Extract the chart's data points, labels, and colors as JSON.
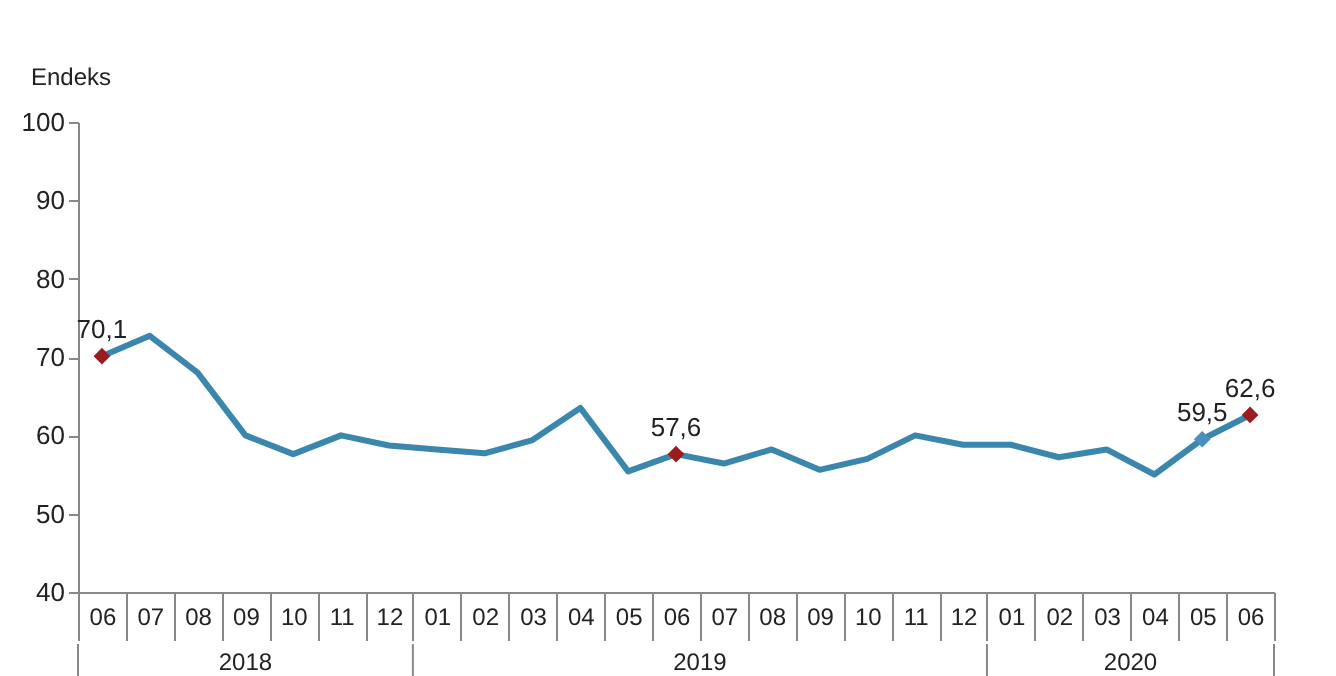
{
  "chart_data": {
    "type": "line",
    "ylabel": "Endeks",
    "categories": [
      "06",
      "07",
      "08",
      "09",
      "10",
      "11",
      "12",
      "01",
      "02",
      "03",
      "04",
      "05",
      "06",
      "07",
      "08",
      "09",
      "10",
      "11",
      "12",
      "01",
      "02",
      "03",
      "04",
      "05",
      "06"
    ],
    "annotations": [
      "2018",
      "2019",
      "2020"
    ],
    "ylim": [
      40,
      100
    ],
    "yticks": [
      40,
      50,
      60,
      70,
      80,
      90,
      100
    ],
    "grid": false,
    "series": [
      {
        "color": "#3a86ad",
        "marker": "none",
        "values": [
          70.1,
          72.7,
          68,
          60,
          57.6,
          60,
          58.7,
          58.2,
          57.7,
          59.4,
          63.5,
          55.4,
          57.6,
          56.4,
          58.2,
          55.6,
          57,
          60,
          58.8,
          58.8,
          57.2,
          58.2,
          55,
          59.5,
          62.6
        ]
      },
      {
        "type": "scatter",
        "marker": "diamond",
        "values": [
          70.1,
          null,
          null,
          null,
          null,
          null,
          null,
          null,
          null,
          null,
          null,
          null,
          57.6,
          null,
          null,
          null,
          null,
          null,
          null,
          null,
          null,
          null,
          null,
          59.5,
          62.6
        ],
        "colors": [
          "#9b1c1f",
          null,
          null,
          null,
          null,
          null,
          null,
          null,
          null,
          null,
          null,
          null,
          "#9b1c1f",
          null,
          null,
          null,
          null,
          null,
          null,
          null,
          null,
          null,
          null,
          "#4a8fc2",
          "#9b1c1f"
        ],
        "value_labels": [
          "70,1",
          null,
          null,
          null,
          null,
          null,
          null,
          null,
          null,
          null,
          null,
          null,
          "57,6",
          null,
          null,
          null,
          null,
          null,
          null,
          null,
          null,
          null,
          null,
          "59,5",
          "62,6"
        ]
      }
    ]
  }
}
